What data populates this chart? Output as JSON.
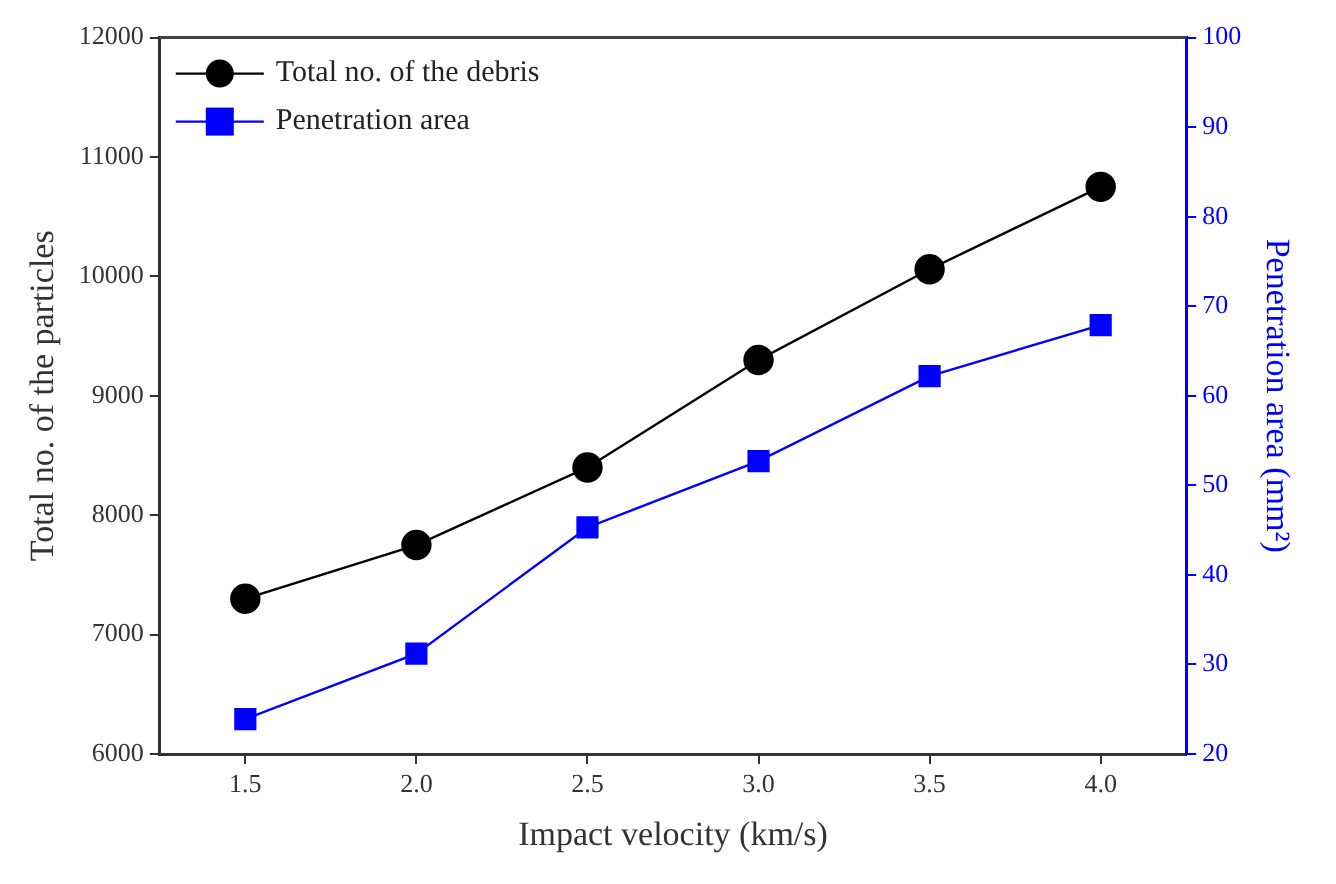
{
  "chart_data": {
    "type": "line",
    "xlabel": "Impact velocity (km/s)",
    "ylabel": "Total no. of the particles",
    "y2label": "Penetration area (mm²)",
    "x": [
      1.5,
      2.0,
      2.5,
      3.0,
      3.5,
      4.0
    ],
    "series": [
      {
        "name": "Total no. of the debris",
        "color": "#000000",
        "marker": "circle",
        "values": [
          7300,
          7750,
          8400,
          9300,
          10060,
          10750
        ]
      },
      {
        "name": "Penetration area",
        "color": "#0000ff",
        "marker": "square",
        "axis": "y2",
        "values": [
          23.9,
          31.2,
          45.3,
          52.7,
          62.2,
          67.9
        ]
      }
    ],
    "xlim": [
      1.25,
      4.25
    ],
    "xticks": [
      1.5,
      {
        "value": 2,
        "label": "2.0"
      },
      2.5,
      {
        "value": 3,
        "label": "3.0"
      },
      3.5,
      {
        "value": 4,
        "label": "4.0"
      }
    ],
    "ylim": [
      6000,
      12000
    ],
    "yticks": [
      6000,
      7000,
      8000,
      9000,
      10000,
      11000,
      12000
    ],
    "y2lim": [
      20,
      100
    ],
    "y2ticks": [
      20,
      30,
      40,
      50,
      60,
      70,
      80,
      90,
      100
    ],
    "grid": false,
    "legend": "top left"
  }
}
